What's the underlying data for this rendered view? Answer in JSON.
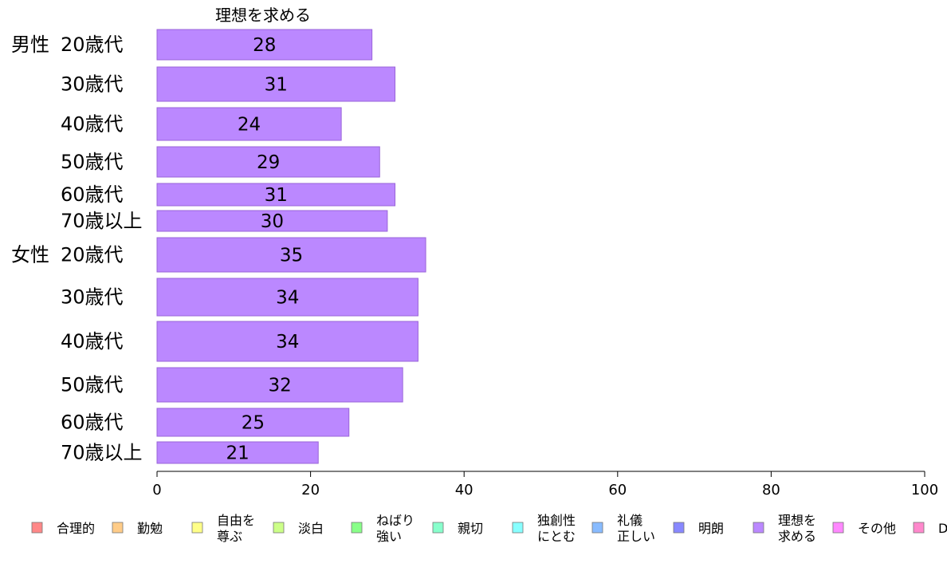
{
  "chart_data": {
    "type": "bar",
    "orientation": "horizontal",
    "stacked": true,
    "title": "理想を求める",
    "xlim": [
      0,
      100
    ],
    "xticks": [
      "0",
      "20",
      "40",
      "60",
      "80",
      "100"
    ],
    "grid": false,
    "legend_placement": "bottom",
    "groups": [
      {
        "label": "男性",
        "categories": [
          "20歳代",
          "30歳代",
          "40歳代",
          "50歳代",
          "60歳代",
          "70歳以上"
        ]
      },
      {
        "label": "女性",
        "categories": [
          "20歳代",
          "30歳代",
          "40歳代",
          "50歳代",
          "60歳代",
          "70歳以上"
        ]
      }
    ],
    "series": [
      {
        "name": "理想を求める",
        "color": "#bb88ff",
        "values": [
          28,
          31,
          24,
          29,
          31,
          30,
          35,
          34,
          34,
          32,
          25,
          21
        ],
        "labels": [
          "28",
          "31",
          "24",
          "29",
          "31",
          "30",
          "35",
          "34",
          "34",
          "32",
          "25",
          "21"
        ]
      }
    ],
    "legend": [
      {
        "name": "合理的",
        "color": "#ff8888"
      },
      {
        "name": "勤勉",
        "color": "#ffcc88"
      },
      {
        "name": "自由を\n尊ぶ",
        "color": "#ffff88"
      },
      {
        "name": "淡白",
        "color": "#ccff88"
      },
      {
        "name": "ねばり\n強い",
        "color": "#88ff88"
      },
      {
        "name": "親切",
        "color": "#88ffcc"
      },
      {
        "name": "独創性\nにとむ",
        "color": "#88ffff"
      },
      {
        "name": "礼儀\n正しい",
        "color": "#88bbff"
      },
      {
        "name": "明朗",
        "color": "#8888ff"
      },
      {
        "name": "理想を\n求める",
        "color": "#bb88ff"
      },
      {
        "name": "その他",
        "color": "#ff88ff"
      },
      {
        "name": "D",
        "color": "#ff88cc"
      }
    ]
  }
}
